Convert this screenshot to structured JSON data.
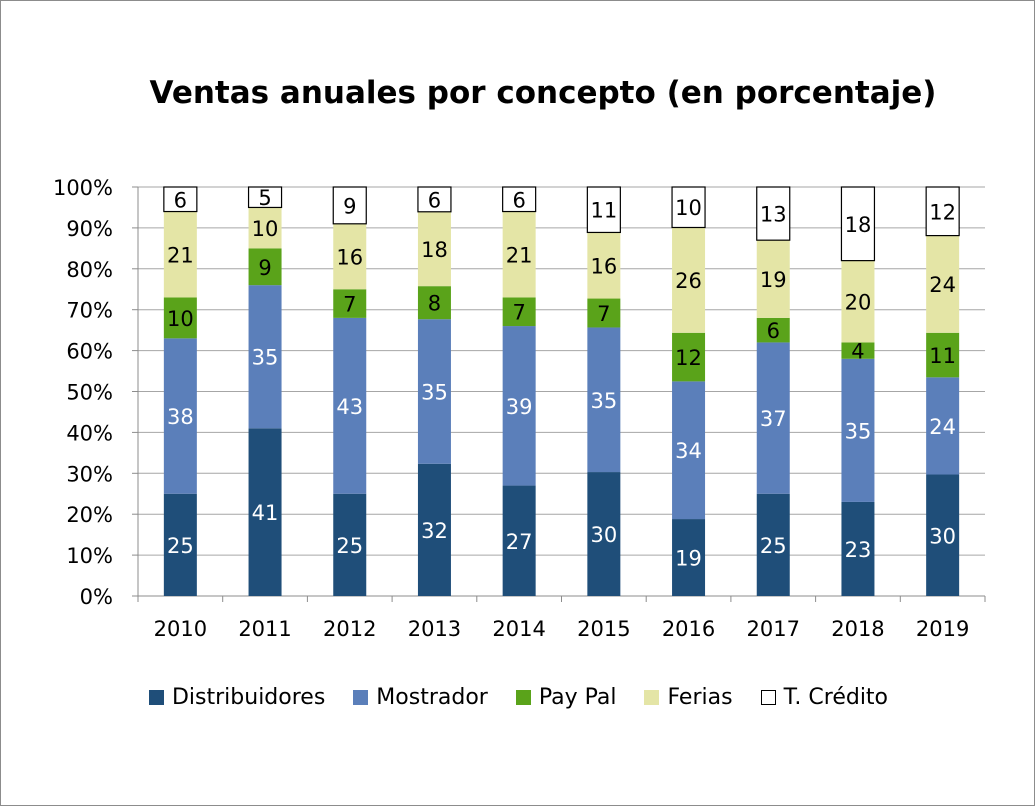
{
  "chart_data": {
    "type": "bar",
    "stacked": true,
    "title": "Ventas anuales por concepto (en porcentaje)",
    "categories": [
      "2010",
      "2011",
      "2012",
      "2013",
      "2014",
      "2015",
      "2016",
      "2017",
      "2018",
      "2019"
    ],
    "series": [
      {
        "name": "Distribuidores",
        "color": "#1f4e79",
        "values": [
          25,
          41,
          25,
          32,
          27,
          30,
          19,
          25,
          23,
          30
        ]
      },
      {
        "name": "Mostrador",
        "color": "#5b7fba",
        "values": [
          38,
          35,
          43,
          35,
          39,
          35,
          34,
          37,
          35,
          24
        ]
      },
      {
        "name": "Pay Pal",
        "color": "#5aa31a",
        "values": [
          10,
          9,
          7,
          8,
          7,
          7,
          12,
          6,
          4,
          11
        ]
      },
      {
        "name": "Ferias",
        "color": "#e4e5a6",
        "values": [
          21,
          10,
          16,
          18,
          21,
          16,
          26,
          19,
          20,
          24
        ]
      },
      {
        "name": "T. Crédito",
        "color": "#ffffff",
        "values": [
          6,
          5,
          9,
          6,
          6,
          11,
          10,
          13,
          18,
          12
        ]
      }
    ],
    "y_ticks": [
      "0%",
      "10%",
      "20%",
      "30%",
      "40%",
      "50%",
      "60%",
      "70%",
      "80%",
      "90%",
      "100%"
    ],
    "ylim": [
      0,
      100
    ],
    "grid": true,
    "legend_position": "bottom"
  }
}
